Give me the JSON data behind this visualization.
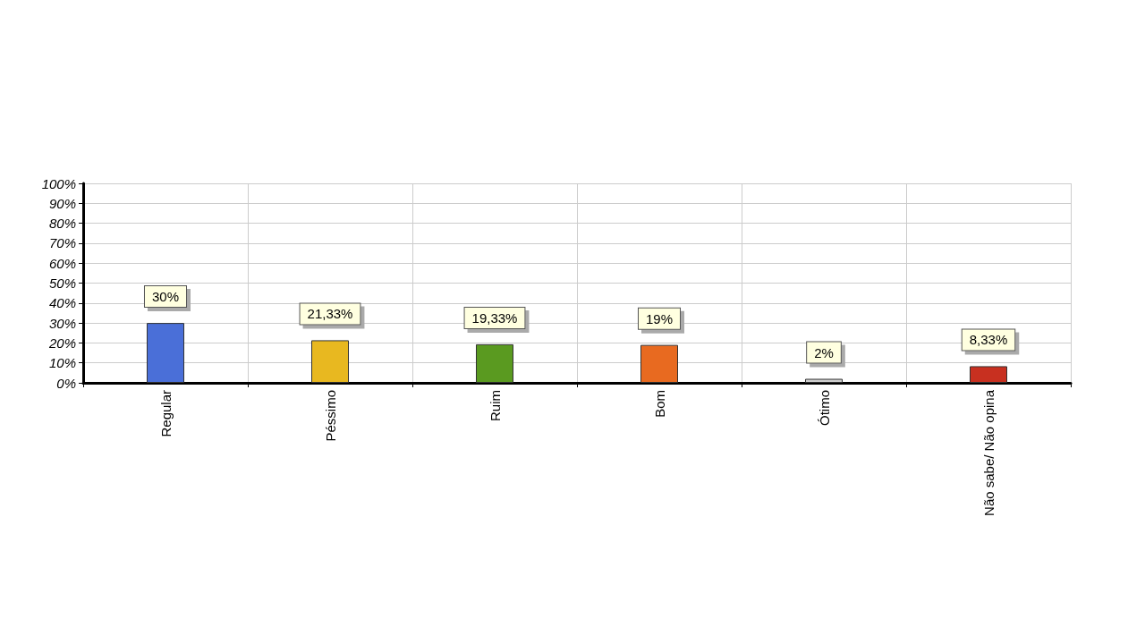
{
  "chart_data": {
    "type": "bar",
    "categories": [
      "Regular",
      "Péssimo",
      "Ruim",
      "Bom",
      "Ótimo",
      "Não sabe/ Não opina"
    ],
    "values": [
      30,
      21.33,
      19.33,
      19,
      2,
      8.33
    ],
    "colors": [
      "#4a6fd8",
      "#e8b820",
      "#5a9a20",
      "#e86a20",
      "#d0d0d0",
      "#c83020"
    ],
    "value_labels": [
      "30%",
      "21,33%",
      "19,33%",
      "19%",
      "2%",
      "8,33%"
    ],
    "ylim": [
      0,
      100
    ],
    "yticks": [
      {
        "value": 0,
        "label": "0%"
      },
      {
        "value": 10,
        "label": "10%"
      },
      {
        "value": 20,
        "label": "20%"
      },
      {
        "value": 30,
        "label": "30%"
      },
      {
        "value": 40,
        "label": "40%"
      },
      {
        "value": 50,
        "label": "50%"
      },
      {
        "value": 60,
        "label": "60%"
      },
      {
        "value": 70,
        "label": "70%"
      },
      {
        "value": 80,
        "label": "80%"
      },
      {
        "value": 90,
        "label": "90%"
      },
      {
        "value": 100,
        "label": "100%"
      }
    ],
    "grid": true
  }
}
